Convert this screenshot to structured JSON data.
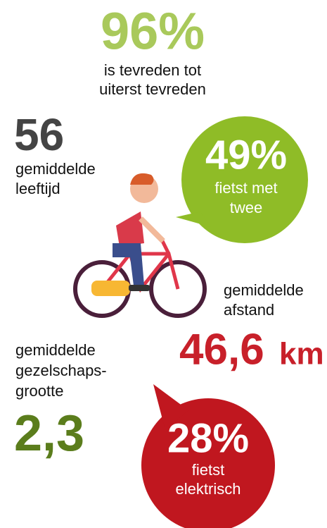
{
  "satisfaction": {
    "value": "96%",
    "label": [
      "is tevreden tot",
      "uiterst tevreden"
    ]
  },
  "age": {
    "value": "56",
    "label": [
      "gemiddelde",
      "leeftijd"
    ]
  },
  "pairs": {
    "value": "49%",
    "label": [
      "fietst met",
      "twee"
    ]
  },
  "distance": {
    "label": [
      "gemiddelde",
      "afstand"
    ],
    "value": "46,6",
    "unit": "km"
  },
  "group_size": {
    "label": [
      "gemiddelde",
      "gezelschaps-",
      "grootte"
    ],
    "value": "2,3"
  },
  "electric": {
    "value": "28%",
    "label": [
      "fietst",
      "elektrisch"
    ]
  }
}
